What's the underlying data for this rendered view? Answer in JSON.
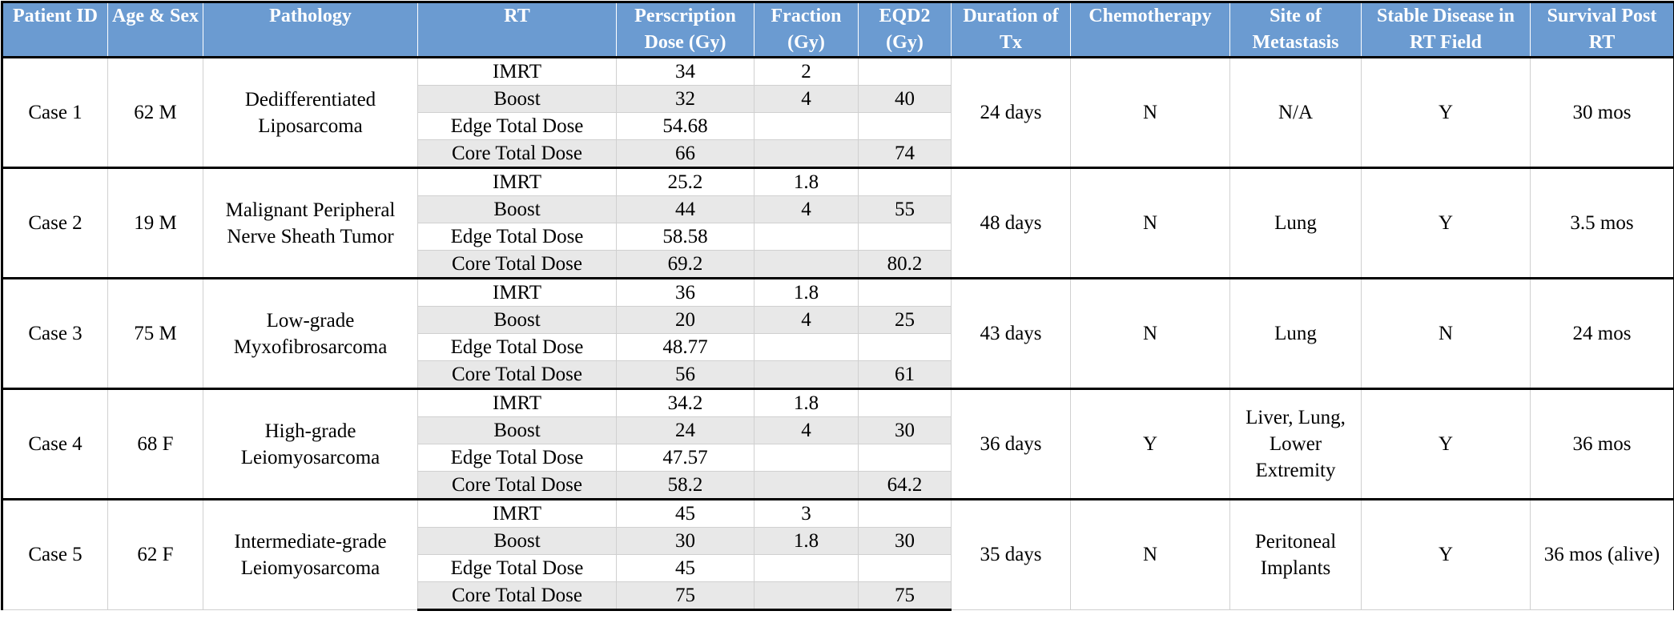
{
  "columns": [
    "Patient ID",
    "Age & Sex",
    "Pathology",
    "RT",
    "Perscription Dose (Gy)",
    "Fraction (Gy)",
    "EQD2 (Gy)",
    "Duration of Tx",
    "Chemotherapy",
    "Site of Metastasis",
    "Stable Disease in RT Field",
    "Survival Post RT"
  ],
  "cases": [
    {
      "id": "Case 1",
      "age_sex": "62 M",
      "pathology": "Dedifferentiated Liposarcoma",
      "duration": "24 days",
      "chemo": "N",
      "metastasis": "N/A",
      "stable": "Y",
      "survival": "30 mos",
      "rt": [
        {
          "label": "IMRT",
          "dose": "34",
          "fraction": "2",
          "eqd2": ""
        },
        {
          "label": "Boost",
          "dose": "32",
          "fraction": "4",
          "eqd2": "40"
        },
        {
          "label": "Edge Total Dose",
          "dose": "54.68",
          "fraction": "",
          "eqd2": ""
        },
        {
          "label": "Core Total Dose",
          "dose": "66",
          "fraction": "",
          "eqd2": "74"
        }
      ]
    },
    {
      "id": "Case 2",
      "age_sex": "19 M",
      "pathology": "Malignant Peripheral Nerve Sheath Tumor",
      "duration": "48 days",
      "chemo": "N",
      "metastasis": "Lung",
      "stable": "Y",
      "survival": "3.5 mos",
      "rt": [
        {
          "label": "IMRT",
          "dose": "25.2",
          "fraction": "1.8",
          "eqd2": ""
        },
        {
          "label": "Boost",
          "dose": "44",
          "fraction": "4",
          "eqd2": "55"
        },
        {
          "label": "Edge Total Dose",
          "dose": "58.58",
          "fraction": "",
          "eqd2": ""
        },
        {
          "label": "Core Total Dose",
          "dose": "69.2",
          "fraction": "",
          "eqd2": "80.2"
        }
      ]
    },
    {
      "id": "Case 3",
      "age_sex": "75 M",
      "pathology": "Low-grade Myxofibrosarcoma",
      "duration": "43 days",
      "chemo": "N",
      "metastasis": "Lung",
      "stable": "N",
      "survival": "24 mos",
      "rt": [
        {
          "label": "IMRT",
          "dose": "36",
          "fraction": "1.8",
          "eqd2": ""
        },
        {
          "label": "Boost",
          "dose": "20",
          "fraction": "4",
          "eqd2": "25"
        },
        {
          "label": "Edge Total Dose",
          "dose": "48.77",
          "fraction": "",
          "eqd2": ""
        },
        {
          "label": "Core Total Dose",
          "dose": "56",
          "fraction": "",
          "eqd2": "61"
        }
      ]
    },
    {
      "id": "Case 4",
      "age_sex": "68 F",
      "pathology": "High-grade Leiomyosarcoma",
      "duration": "36 days",
      "chemo": "Y",
      "metastasis": "Liver, Lung, Lower Extremity",
      "stable": "Y",
      "survival": "36 mos",
      "rt": [
        {
          "label": "IMRT",
          "dose": "34.2",
          "fraction": "1.8",
          "eqd2": ""
        },
        {
          "label": "Boost",
          "dose": "24",
          "fraction": "4",
          "eqd2": "30"
        },
        {
          "label": "Edge Total Dose",
          "dose": "47.57",
          "fraction": "",
          "eqd2": ""
        },
        {
          "label": "Core Total Dose",
          "dose": "58.2",
          "fraction": "",
          "eqd2": "64.2"
        }
      ]
    },
    {
      "id": "Case 5",
      "age_sex": "62 F",
      "pathology": "Intermediate-grade Leiomyosarcoma",
      "duration": "35 days",
      "chemo": "N",
      "metastasis": "Peritoneal Implants",
      "stable": "Y",
      "survival": "36 mos (alive)",
      "rt": [
        {
          "label": "IMRT",
          "dose": "45",
          "fraction": "3",
          "eqd2": ""
        },
        {
          "label": "Boost",
          "dose": "30",
          "fraction": "1.8",
          "eqd2": "30"
        },
        {
          "label": "Edge Total Dose",
          "dose": "45",
          "fraction": "",
          "eqd2": ""
        },
        {
          "label": "Core Total Dose",
          "dose": "75",
          "fraction": "",
          "eqd2": "75"
        }
      ]
    }
  ]
}
